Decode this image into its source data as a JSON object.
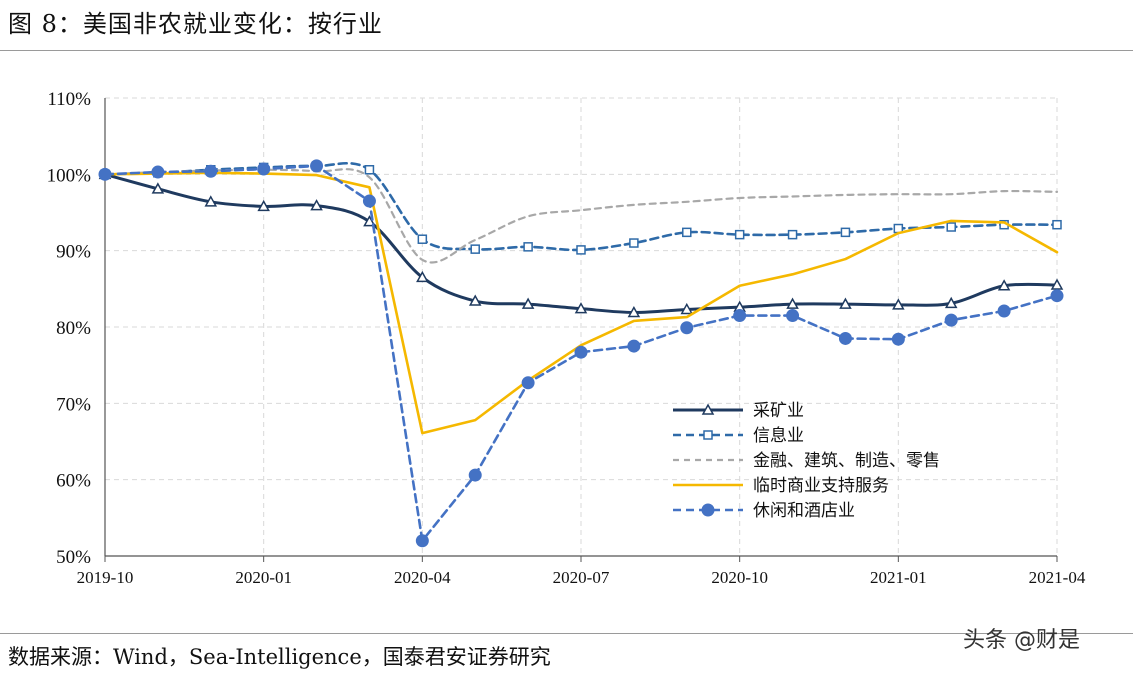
{
  "page": {
    "title": "图 8：美国非农就业变化：按行业",
    "source": "数据来源：Wind，Sea-Intelligence，国泰君安证券研究",
    "watermark": "头条 @财是"
  },
  "chart_data": {
    "type": "line",
    "title": "",
    "xlabel": "",
    "ylabel": "",
    "ylim": [
      50,
      110
    ],
    "y_ticks": [
      "50%",
      "60%",
      "70%",
      "80%",
      "90%",
      "100%",
      "110%"
    ],
    "y_tick_values": [
      50,
      60,
      70,
      80,
      90,
      100,
      110
    ],
    "x": [
      "2019-10",
      "2019-11",
      "2019-12",
      "2020-01",
      "2020-02",
      "2020-03",
      "2020-04",
      "2020-05",
      "2020-06",
      "2020-07",
      "2020-08",
      "2020-09",
      "2020-10",
      "2020-11",
      "2020-12",
      "2021-01",
      "2021-02",
      "2021-03",
      "2021-04"
    ],
    "x_tick_labels": [
      "2019-10",
      "2020-01",
      "2020-04",
      "2020-07",
      "2020-10",
      "2021-01",
      "2021-04"
    ],
    "x_tick_indices": [
      0,
      3,
      6,
      9,
      12,
      15,
      18
    ],
    "grid": true,
    "legend_position": "lower-right",
    "series": [
      {
        "name": "采矿业",
        "color": "#1f3a5f",
        "style": "solid",
        "marker": "triangle",
        "values": [
          100,
          98.1,
          96.4,
          95.8,
          95.9,
          93.8,
          86.5,
          83.4,
          83.0,
          82.4,
          81.9,
          82.3,
          82.6,
          83.0,
          83.0,
          82.9,
          83.1,
          85.4,
          85.5
        ]
      },
      {
        "name": "信息业",
        "color": "#2e6aa8",
        "style": "dashed",
        "marker": "square",
        "values": [
          100,
          100.2,
          100.6,
          100.9,
          101.1,
          100.6,
          91.5,
          90.2,
          90.5,
          90.1,
          91.0,
          92.4,
          92.1,
          92.1,
          92.4,
          92.9,
          93.1,
          93.4,
          93.4
        ]
      },
      {
        "name": "金融、建筑、制造、零售",
        "color": "#a8a8a8",
        "style": "dashed",
        "marker": "none",
        "values": [
          100,
          100.3,
          100.5,
          100.6,
          100.4,
          99.6,
          88.8,
          91.4,
          94.5,
          95.3,
          96.0,
          96.4,
          96.9,
          97.1,
          97.3,
          97.4,
          97.4,
          97.8,
          97.7
        ]
      },
      {
        "name": "临时商业支持服务",
        "color": "#f5b800",
        "style": "solid",
        "marker": "none",
        "values": [
          100,
          100.1,
          100.2,
          100.1,
          99.9,
          98.3,
          66.1,
          67.8,
          73.0,
          77.6,
          80.8,
          81.3,
          85.4,
          86.9,
          88.9,
          92.3,
          93.9,
          93.7,
          89.8
        ]
      },
      {
        "name": "休闲和酒店业",
        "color": "#4472c4",
        "style": "dashed",
        "marker": "circle",
        "values": [
          100,
          100.3,
          100.4,
          100.7,
          101.1,
          96.5,
          52.0,
          60.6,
          72.7,
          76.7,
          77.5,
          79.9,
          81.5,
          81.5,
          78.5,
          78.4,
          80.9,
          82.1,
          84.1
        ]
      }
    ]
  }
}
